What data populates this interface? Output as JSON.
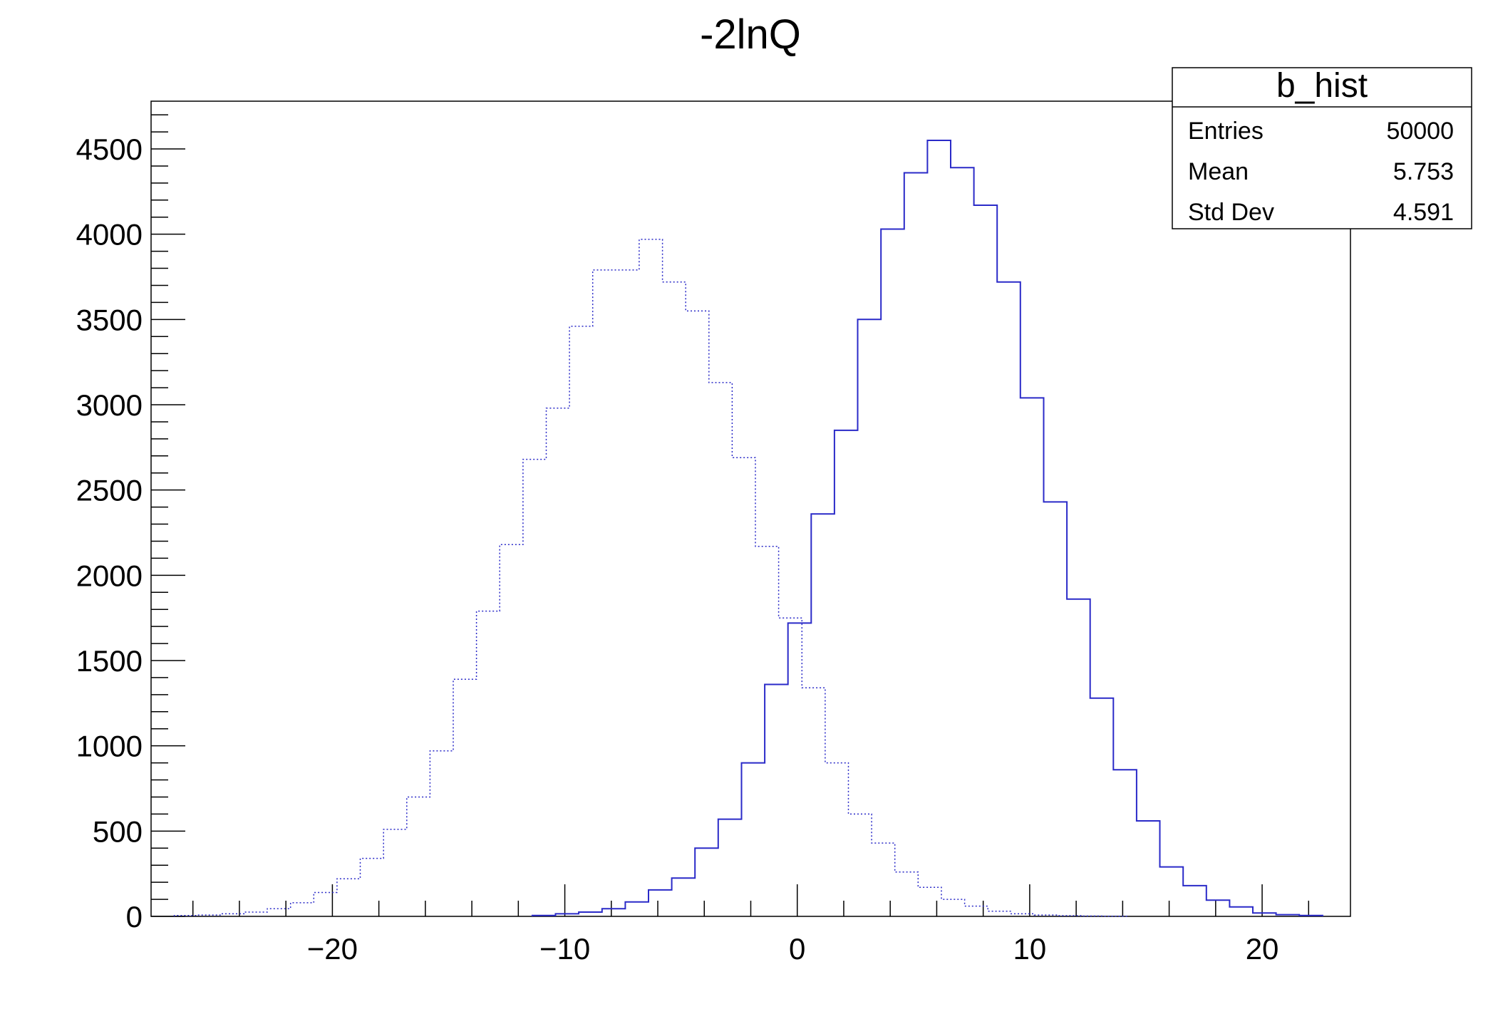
{
  "chart_data": {
    "type": "histogram",
    "title": "-2lnQ",
    "xlim": [
      -27.8,
      23.8
    ],
    "ylim": [
      0,
      4780
    ],
    "x_ticks": [
      -20,
      -10,
      0,
      10,
      20
    ],
    "x_tick_labels": [
      "−20",
      "−10",
      "0",
      "10",
      "20"
    ],
    "y_ticks": [
      0,
      500,
      1000,
      1500,
      2000,
      2500,
      3000,
      3500,
      4000,
      4500
    ],
    "y_tick_labels": [
      "0",
      "500",
      "1000",
      "1500",
      "2000",
      "2500",
      "3000",
      "3500",
      "4000",
      "4500"
    ],
    "grid": false,
    "line_color": "#2a2ac8",
    "series": [
      {
        "style": "dotted",
        "bin_edges": [
          -26.8,
          -25.8,
          -24.8,
          -23.8,
          -22.8,
          -21.8,
          -20.8,
          -19.8,
          -18.8,
          -17.8,
          -16.8,
          -15.8,
          -14.8,
          -13.8,
          -12.8,
          -11.8,
          -10.8,
          -9.8,
          -8.8,
          -7.8,
          -6.8,
          -5.8,
          -4.8,
          -3.8,
          -2.8,
          -1.8,
          -0.8,
          0.2,
          1.2,
          2.2,
          3.2,
          4.2,
          5.2,
          6.2,
          7.2,
          8.2,
          9.2,
          10.2,
          11.2,
          12.2,
          13.2,
          14.2
        ],
        "counts": [
          5,
          8,
          15,
          25,
          45,
          80,
          140,
          220,
          340,
          510,
          700,
          970,
          1390,
          1790,
          2180,
          2680,
          2980,
          3460,
          3790,
          3790,
          3970,
          3720,
          3550,
          3130,
          2690,
          2170,
          1750,
          1340,
          900,
          600,
          430,
          260,
          170,
          100,
          60,
          30,
          15,
          8,
          4,
          2,
          1
        ]
      },
      {
        "style": "solid",
        "bin_edges": [
          -11.4,
          -10.4,
          -9.4,
          -8.4,
          -7.4,
          -6.4,
          -5.4,
          -4.4,
          -3.4,
          -2.4,
          -1.4,
          -0.4,
          0.6,
          1.6,
          2.6,
          3.6,
          4.6,
          5.6,
          6.6,
          7.6,
          8.6,
          9.6,
          10.6,
          11.6,
          12.6,
          13.6,
          14.6,
          15.6,
          16.6,
          17.6,
          18.6,
          19.6,
          20.6,
          21.6,
          22.6
        ],
        "counts": [
          5,
          15,
          25,
          45,
          85,
          155,
          225,
          400,
          570,
          900,
          1360,
          1720,
          2360,
          2850,
          3500,
          4030,
          4360,
          4550,
          4390,
          4170,
          3720,
          3040,
          2430,
          1860,
          1280,
          860,
          560,
          290,
          180,
          95,
          55,
          20,
          10,
          5
        ]
      }
    ],
    "stats_box": {
      "title": "b_hist",
      "rows": [
        {
          "label": "Entries",
          "value": "50000"
        },
        {
          "label": "Mean",
          "value": "5.753"
        },
        {
          "label": "Std Dev",
          "value": "4.591"
        }
      ]
    }
  }
}
